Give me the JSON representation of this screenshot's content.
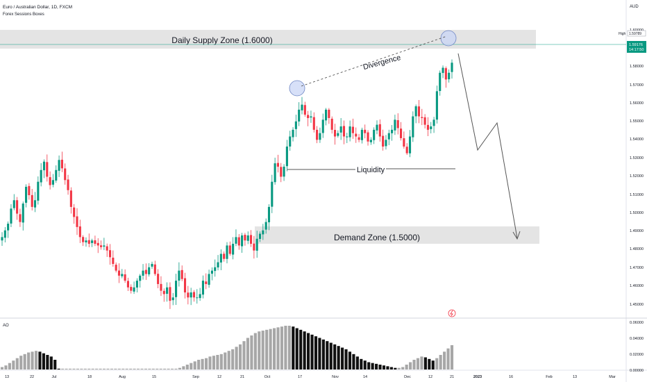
{
  "header": {
    "symbol_title": "Euro / Australian Dollar, 1D, FXCM",
    "indicator_name": "Forex Sessions Boxes",
    "currency": "AUD"
  },
  "price_axis": {
    "ticks": [
      "1.60000",
      "1.58000",
      "1.57000",
      "1.56000",
      "1.55000",
      "1.54000",
      "1.53000",
      "1.52000",
      "1.51000",
      "1.50000",
      "1.49000",
      "1.48000",
      "1.47000",
      "1.46000",
      "1.45000"
    ],
    "high_label": "High",
    "high_value": "1.59789",
    "last_price": "1.59176",
    "countdown": "14:17:50"
  },
  "time_axis": {
    "labels": [
      "13",
      "22",
      "Jul",
      "18",
      "Aug",
      "15",
      "Sep",
      "12",
      "21",
      "Oct",
      "17",
      "Nov",
      "14",
      "Dec",
      "12",
      "21",
      "2023",
      "16",
      "Feb",
      "13",
      "Mar"
    ]
  },
  "annotations": {
    "supply_zone": "Daily Supply Zone (1.6000)",
    "demand_zone": "Demand Zone (1.5000)",
    "divergence": "Divergence",
    "liquidity": "Liquidity"
  },
  "oscillator": {
    "name": "AO",
    "ticks": [
      "0.06000",
      "0.04000",
      "0.02000",
      "0.00000"
    ]
  },
  "colors": {
    "up": "#089981",
    "down": "#f23645",
    "zone": "#e4e4e4",
    "ao_gray": "#a7a7a7",
    "ao_black": "#111111",
    "circle": "#b8c8f0"
  },
  "chart_data": {
    "type": "candlestick",
    "ylim": [
      1.443,
      1.612
    ],
    "supply_zone_level": 1.6,
    "demand_zone_level": 1.5,
    "close_path": [
      1.488,
      1.492,
      1.496,
      1.505,
      1.51,
      1.502,
      1.497,
      1.508,
      1.518,
      1.513,
      1.506,
      1.51,
      1.521,
      1.528,
      1.533,
      1.524,
      1.519,
      1.522,
      1.528,
      1.534,
      1.529,
      1.522,
      1.516,
      1.506,
      1.5,
      1.494,
      1.488,
      1.485,
      1.486,
      1.484,
      1.486,
      1.484,
      1.483,
      1.482,
      1.483,
      1.48,
      1.476,
      1.472,
      1.468,
      1.465,
      1.466,
      1.462,
      1.458,
      1.456,
      1.458,
      1.462,
      1.465,
      1.468,
      1.466,
      1.47,
      1.472,
      1.466,
      1.46,
      1.456,
      1.454,
      1.458,
      1.45,
      1.452,
      1.462,
      1.468,
      1.463,
      1.455,
      1.452,
      1.455,
      1.452,
      1.452,
      1.454,
      1.462,
      1.46,
      1.466,
      1.468,
      1.47,
      1.473,
      1.478,
      1.475,
      1.483,
      1.478,
      1.484,
      1.488,
      1.483,
      1.489,
      1.486,
      1.489,
      1.484,
      1.48,
      1.487,
      1.49,
      1.492,
      1.497,
      1.506,
      1.521,
      1.532,
      1.53,
      1.524,
      1.53,
      1.542,
      1.548,
      1.552,
      1.557,
      1.564,
      1.567,
      1.561,
      1.559,
      1.56,
      1.552,
      1.546,
      1.55,
      1.558,
      1.564,
      1.559,
      1.552,
      1.548,
      1.55,
      1.554,
      1.548,
      1.548,
      1.554,
      1.55,
      1.548,
      1.546,
      1.552,
      1.55,
      1.545,
      1.546,
      1.552,
      1.555,
      1.548,
      1.542,
      1.546,
      1.55,
      1.552,
      1.558,
      1.553,
      1.547,
      1.542,
      1.538,
      1.548,
      1.56,
      1.566,
      1.56,
      1.559,
      1.555,
      1.552,
      1.554,
      1.558,
      1.575,
      1.586,
      1.589,
      1.582,
      1.586,
      1.592
    ],
    "ao_values": [
      0.003,
      0.005,
      0.008,
      0.011,
      0.014,
      0.017,
      0.019,
      0.021,
      0.022,
      0.023,
      0.022,
      0.02,
      0.018,
      0.016,
      0.012,
      0.001,
      0.001,
      0.001,
      0.001,
      0.001,
      0.001,
      0.001,
      0.001,
      0.001,
      0.001,
      0.001,
      0.001,
      0.001,
      0.001,
      0.001,
      0.001,
      0.001,
      0.001,
      0.001,
      0.001,
      0.001,
      0.001,
      0.001,
      0.001,
      0.001,
      0.001,
      0.001,
      0.001,
      0.001,
      0.001,
      0.001,
      0.001,
      0.002,
      0.004,
      0.006,
      0.008,
      0.01,
      0.012,
      0.013,
      0.014,
      0.016,
      0.017,
      0.018,
      0.019,
      0.021,
      0.023,
      0.025,
      0.028,
      0.031,
      0.035,
      0.039,
      0.042,
      0.045,
      0.047,
      0.048,
      0.049,
      0.05,
      0.051,
      0.052,
      0.053,
      0.054,
      0.054,
      0.053,
      0.051,
      0.049,
      0.047,
      0.045,
      0.043,
      0.041,
      0.039,
      0.037,
      0.035,
      0.033,
      0.031,
      0.029,
      0.027,
      0.025,
      0.022,
      0.019,
      0.016,
      0.013,
      0.011,
      0.009,
      0.008,
      0.007,
      0.006,
      0.005,
      0.004,
      0.003,
      0.002,
      0.002,
      0.003,
      0.006,
      0.009,
      0.012,
      0.014,
      0.016,
      0.015,
      0.013,
      0.011,
      0.014,
      0.018,
      0.022,
      0.026,
      0.03
    ]
  }
}
